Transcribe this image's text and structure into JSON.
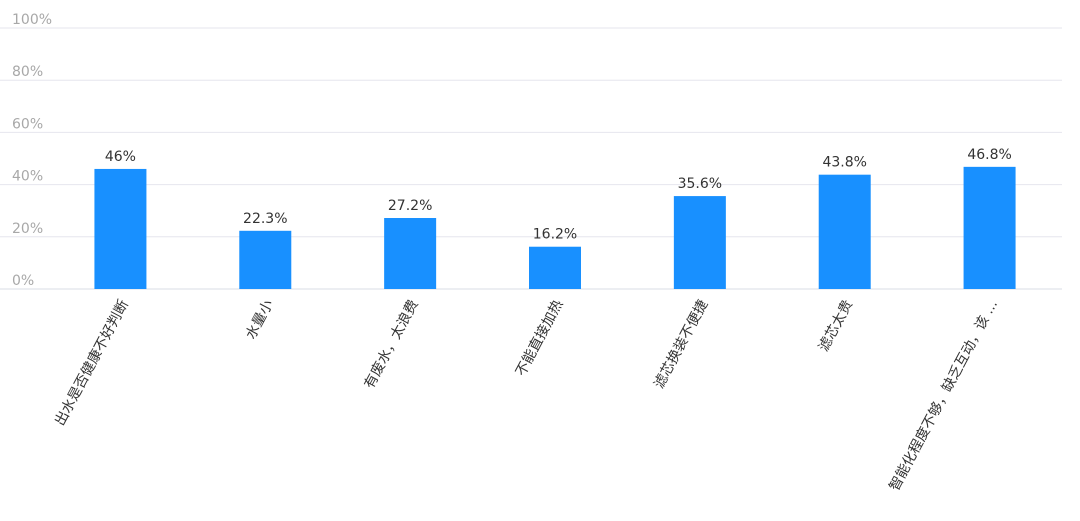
{
  "chart_data": {
    "type": "bar",
    "title": "",
    "xlabel": "",
    "ylabel": "",
    "ylim": [
      0,
      100
    ],
    "yticks": [
      "0%",
      "20%",
      "40%",
      "60%",
      "80%",
      "100%"
    ],
    "ytick_values": [
      0,
      20,
      40,
      60,
      80,
      100
    ],
    "categories": [
      "出水是否健康不好判断",
      "水量小",
      "有废水，太浪费",
      "不能直接加热",
      "滤芯换装不便捷",
      "滤芯太贵",
      "智能化程度不够，缺乏互动，该 ..."
    ],
    "values": [
      46,
      22.3,
      27.2,
      16.2,
      35.6,
      43.8,
      46.8
    ],
    "value_labels": [
      "46%",
      "22.3%",
      "27.2%",
      "16.2%",
      "35.6%",
      "43.8%",
      "46.8%"
    ],
    "bar_color": "#1890ff",
    "grid": true,
    "legend": "none"
  }
}
